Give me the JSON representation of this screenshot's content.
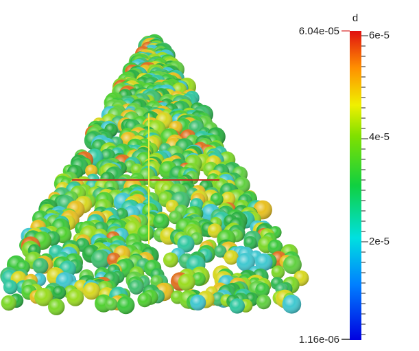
{
  "colorbar": {
    "title": "d",
    "max_label": "6.04e-05",
    "min_label": "1.16e-06",
    "ticks": [
      "6e-5",
      "4e-5",
      "2e-5"
    ]
  }
}
